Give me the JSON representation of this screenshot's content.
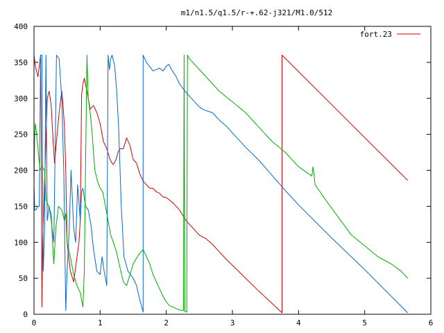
{
  "chart_data": {
    "type": "line",
    "title": "m1/n1.5/q1.5/r-+.62-j321/M1.0/512",
    "xlabel": "",
    "ylabel": "",
    "xlim": [
      0,
      6
    ],
    "ylim": [
      0,
      400
    ],
    "x_ticks": [
      "0",
      "1",
      "2",
      "3",
      "4",
      "5",
      "6"
    ],
    "y_ticks": [
      "0",
      "50",
      "100",
      "150",
      "200",
      "250",
      "300",
      "350",
      "400"
    ],
    "grid": false,
    "legend_position": "top-right",
    "legend_entries": [
      "fort.23"
    ],
    "series": [
      {
        "name": "fort.23",
        "color": "#cc0000",
        "points": [
          [
            0.0,
            360
          ],
          [
            0.02,
            345
          ],
          [
            0.06,
            330
          ],
          [
            0.08,
            345
          ],
          [
            0.1,
            360
          ],
          [
            0.11,
            250
          ],
          [
            0.12,
            10
          ],
          [
            0.13,
            100
          ],
          [
            0.18,
            240
          ],
          [
            0.2,
            300
          ],
          [
            0.23,
            310
          ],
          [
            0.26,
            290
          ],
          [
            0.29,
            240
          ],
          [
            0.31,
            210
          ],
          [
            0.34,
            240
          ],
          [
            0.38,
            280
          ],
          [
            0.42,
            310
          ],
          [
            0.44,
            290
          ],
          [
            0.46,
            260
          ],
          [
            0.48,
            200
          ],
          [
            0.5,
            100
          ],
          [
            0.55,
            60
          ],
          [
            0.6,
            45
          ],
          [
            0.65,
            80
          ],
          [
            0.68,
            100
          ],
          [
            0.7,
            130
          ],
          [
            0.72,
            305
          ],
          [
            0.74,
            320
          ],
          [
            0.76,
            328
          ],
          [
            0.8,
            310
          ],
          [
            0.85,
            285
          ],
          [
            0.9,
            290
          ],
          [
            0.95,
            280
          ],
          [
            1.0,
            265
          ],
          [
            1.05,
            240
          ],
          [
            1.1,
            230
          ],
          [
            1.15,
            215
          ],
          [
            1.18,
            210
          ],
          [
            1.2,
            208
          ],
          [
            1.24,
            215
          ],
          [
            1.27,
            225
          ],
          [
            1.3,
            230
          ],
          [
            1.35,
            230
          ],
          [
            1.4,
            245
          ],
          [
            1.45,
            235
          ],
          [
            1.5,
            215
          ],
          [
            1.55,
            210
          ],
          [
            1.6,
            195
          ],
          [
            1.65,
            185
          ],
          [
            1.7,
            180
          ],
          [
            1.75,
            175
          ],
          [
            1.8,
            175
          ],
          [
            1.85,
            170
          ],
          [
            1.9,
            168
          ],
          [
            1.95,
            163
          ],
          [
            2.0,
            162
          ],
          [
            2.1,
            155
          ],
          [
            2.2,
            145
          ],
          [
            2.3,
            130
          ],
          [
            2.4,
            120
          ],
          [
            2.5,
            110
          ],
          [
            2.6,
            105
          ],
          [
            2.7,
            97
          ],
          [
            2.8,
            87
          ],
          [
            2.9,
            77
          ],
          [
            3.0,
            68
          ],
          [
            3.2,
            50
          ],
          [
            3.4,
            32
          ],
          [
            3.6,
            15
          ],
          [
            3.75,
            2
          ],
          [
            3.75,
            360
          ],
          [
            5.65,
            186
          ]
        ]
      },
      {
        "name": "",
        "color": "#0066cc",
        "points": [
          [
            0.0,
            180
          ],
          [
            0.01,
            145
          ],
          [
            0.03,
            145
          ],
          [
            0.06,
            150
          ],
          [
            0.08,
            150
          ],
          [
            0.1,
            360
          ],
          [
            0.12,
            360
          ],
          [
            0.14,
            60
          ],
          [
            0.16,
            120
          ],
          [
            0.18,
            360
          ],
          [
            0.2,
            130
          ],
          [
            0.23,
            150
          ],
          [
            0.26,
            130
          ],
          [
            0.3,
            100
          ],
          [
            0.34,
            360
          ],
          [
            0.38,
            355
          ],
          [
            0.42,
            300
          ],
          [
            0.45,
            200
          ],
          [
            0.48,
            5
          ],
          [
            0.5,
            60
          ],
          [
            0.53,
            110
          ],
          [
            0.56,
            200
          ],
          [
            0.58,
            160
          ],
          [
            0.6,
            120
          ],
          [
            0.63,
            100
          ],
          [
            0.66,
            180
          ],
          [
            0.7,
            130
          ],
          [
            0.72,
            170
          ],
          [
            0.74,
            175
          ],
          [
            0.78,
            150
          ],
          [
            0.82,
            145
          ],
          [
            0.86,
            125
          ],
          [
            0.9,
            90
          ],
          [
            0.95,
            60
          ],
          [
            1.0,
            55
          ],
          [
            1.03,
            80
          ],
          [
            1.06,
            60
          ],
          [
            1.1,
            40
          ],
          [
            1.12,
            360
          ],
          [
            1.14,
            340
          ],
          [
            1.16,
            355
          ],
          [
            1.18,
            360
          ],
          [
            1.22,
            345
          ],
          [
            1.25,
            310
          ],
          [
            1.28,
            260
          ],
          [
            1.32,
            150
          ],
          [
            1.36,
            80
          ],
          [
            1.42,
            60
          ],
          [
            1.46,
            55
          ],
          [
            1.5,
            50
          ],
          [
            1.55,
            40
          ],
          [
            1.6,
            20
          ],
          [
            1.65,
            3
          ],
          [
            1.65,
            360
          ],
          [
            1.7,
            350
          ],
          [
            1.8,
            338
          ],
          [
            1.9,
            342
          ],
          [
            1.95,
            338
          ],
          [
            2.0,
            345
          ],
          [
            2.04,
            347
          ],
          [
            2.08,
            340
          ],
          [
            2.15,
            330
          ],
          [
            2.2,
            320
          ],
          [
            2.3,
            308
          ],
          [
            2.4,
            298
          ],
          [
            2.5,
            288
          ],
          [
            2.55,
            285
          ],
          [
            2.6,
            283
          ],
          [
            2.7,
            280
          ],
          [
            2.8,
            270
          ],
          [
            2.9,
            262
          ],
          [
            3.0,
            252
          ],
          [
            3.2,
            232
          ],
          [
            3.4,
            214
          ],
          [
            3.6,
            193
          ],
          [
            3.8,
            172
          ],
          [
            4.0,
            152
          ],
          [
            4.5,
            106
          ],
          [
            5.0,
            62
          ],
          [
            5.65,
            2
          ]
        ]
      },
      {
        "name": "",
        "color": "#00aa00",
        "points": [
          [
            0.0,
            180
          ],
          [
            0.01,
            250
          ],
          [
            0.02,
            265
          ],
          [
            0.04,
            250
          ],
          [
            0.06,
            230
          ],
          [
            0.09,
            200
          ],
          [
            0.12,
            205
          ],
          [
            0.16,
            200
          ],
          [
            0.18,
            160
          ],
          [
            0.22,
            150
          ],
          [
            0.26,
            140
          ],
          [
            0.28,
            100
          ],
          [
            0.3,
            70
          ],
          [
            0.33,
            120
          ],
          [
            0.37,
            150
          ],
          [
            0.42,
            145
          ],
          [
            0.46,
            130
          ],
          [
            0.48,
            140
          ],
          [
            0.5,
            100
          ],
          [
            0.55,
            80
          ],
          [
            0.6,
            55
          ],
          [
            0.65,
            40
          ],
          [
            0.7,
            30
          ],
          [
            0.72,
            20
          ],
          [
            0.74,
            10
          ],
          [
            0.76,
            60
          ],
          [
            0.8,
            360
          ],
          [
            0.82,
            300
          ],
          [
            0.85,
            280
          ],
          [
            0.88,
            250
          ],
          [
            0.92,
            200
          ],
          [
            0.96,
            185
          ],
          [
            1.0,
            175
          ],
          [
            1.04,
            170
          ],
          [
            1.08,
            150
          ],
          [
            1.12,
            130
          ],
          [
            1.16,
            110
          ],
          [
            1.2,
            100
          ],
          [
            1.25,
            85
          ],
          [
            1.3,
            65
          ],
          [
            1.35,
            45
          ],
          [
            1.4,
            40
          ],
          [
            1.45,
            55
          ],
          [
            1.5,
            70
          ],
          [
            1.55,
            78
          ],
          [
            1.6,
            85
          ],
          [
            1.65,
            90
          ],
          [
            1.7,
            80
          ],
          [
            1.75,
            70
          ],
          [
            1.8,
            55
          ],
          [
            1.85,
            45
          ],
          [
            1.9,
            35
          ],
          [
            1.95,
            25
          ],
          [
            2.0,
            17
          ],
          [
            2.05,
            12
          ],
          [
            2.1,
            10
          ],
          [
            2.15,
            8
          ],
          [
            2.2,
            6
          ],
          [
            2.26,
            5
          ],
          [
            2.27,
            360
          ],
          [
            2.28,
            4
          ],
          [
            2.31,
            3
          ],
          [
            2.32,
            360
          ],
          [
            2.35,
            355
          ],
          [
            2.45,
            345
          ],
          [
            2.6,
            330
          ],
          [
            2.8,
            310
          ],
          [
            3.0,
            295
          ],
          [
            3.2,
            280
          ],
          [
            3.4,
            260
          ],
          [
            3.6,
            240
          ],
          [
            3.8,
            225
          ],
          [
            4.0,
            205
          ],
          [
            4.2,
            192
          ],
          [
            4.22,
            205
          ],
          [
            4.25,
            180
          ],
          [
            4.4,
            160
          ],
          [
            4.6,
            135
          ],
          [
            4.8,
            110
          ],
          [
            5.0,
            95
          ],
          [
            5.2,
            80
          ],
          [
            5.4,
            70
          ],
          [
            5.55,
            60
          ],
          [
            5.65,
            50
          ]
        ]
      }
    ]
  }
}
